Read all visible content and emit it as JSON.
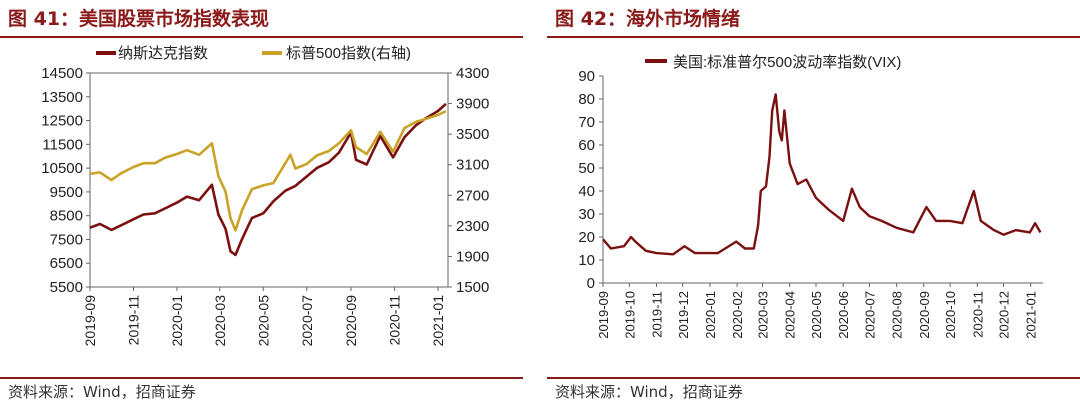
{
  "colors": {
    "accent": "#8b1a1a",
    "nasdaq": "#7a1010",
    "sp500": "#c9a227",
    "vix": "#7a1010"
  },
  "left": {
    "fig_title": "图 41：美国股票市场指数表现",
    "source": "资料来源：Wind，招商证券"
  },
  "right": {
    "fig_title": "图 42：海外市场情绪",
    "source": "资料来源：Wind，招商证券"
  },
  "chart_data": [
    {
      "type": "line",
      "legend": "top",
      "grid": false,
      "y_left": {
        "ticks": [
          5500,
          6500,
          7500,
          8500,
          9500,
          10500,
          11500,
          12500,
          13500,
          14500
        ],
        "range": [
          5500,
          14500
        ]
      },
      "y_right": {
        "ticks": [
          1500,
          1900,
          2300,
          2700,
          3100,
          3500,
          3900,
          4300
        ],
        "range": [
          1500,
          4300
        ]
      },
      "x_ticks": [
        "2019-09",
        "2019-11",
        "2020-01",
        "2020-03",
        "2020-05",
        "2020-07",
        "2020-09",
        "2020-11",
        "2021-01"
      ],
      "x_range": [
        "2019-09-01",
        "2021-01-15"
      ],
      "series": [
        {
          "name": "纳斯达克指数",
          "axis": "left",
          "points": [
            [
              "2019-09-01",
              8000
            ],
            [
              "2019-09-15",
              8150
            ],
            [
              "2019-10-01",
              7900
            ],
            [
              "2019-10-15",
              8100
            ],
            [
              "2019-11-01",
              8350
            ],
            [
              "2019-11-15",
              8550
            ],
            [
              "2019-12-01",
              8600
            ],
            [
              "2019-12-15",
              8800
            ],
            [
              "2020-01-01",
              9050
            ],
            [
              "2020-01-15",
              9300
            ],
            [
              "2020-02-01",
              9150
            ],
            [
              "2020-02-19",
              9800
            ],
            [
              "2020-02-28",
              8550
            ],
            [
              "2020-03-09",
              7950
            ],
            [
              "2020-03-16",
              7000
            ],
            [
              "2020-03-23",
              6850
            ],
            [
              "2020-04-01",
              7500
            ],
            [
              "2020-04-15",
              8400
            ],
            [
              "2020-05-01",
              8600
            ],
            [
              "2020-05-15",
              9100
            ],
            [
              "2020-06-01",
              9550
            ],
            [
              "2020-06-15",
              9750
            ],
            [
              "2020-07-01",
              10150
            ],
            [
              "2020-07-15",
              10500
            ],
            [
              "2020-08-01",
              10750
            ],
            [
              "2020-08-15",
              11150
            ],
            [
              "2020-09-01",
              12000
            ],
            [
              "2020-09-08",
              10850
            ],
            [
              "2020-09-23",
              10650
            ],
            [
              "2020-10-12",
              11850
            ],
            [
              "2020-10-30",
              10950
            ],
            [
              "2020-11-15",
              11800
            ],
            [
              "2020-12-01",
              12300
            ],
            [
              "2020-12-15",
              12600
            ],
            [
              "2021-01-01",
              12900
            ],
            [
              "2021-01-12",
              13200
            ]
          ]
        },
        {
          "name": "标普500指数(右轴)",
          "axis": "right",
          "points": [
            [
              "2019-09-01",
              2980
            ],
            [
              "2019-09-15",
              3000
            ],
            [
              "2019-10-01",
              2900
            ],
            [
              "2019-10-15",
              2990
            ],
            [
              "2019-11-01",
              3070
            ],
            [
              "2019-11-15",
              3120
            ],
            [
              "2019-12-01",
              3120
            ],
            [
              "2019-12-15",
              3190
            ],
            [
              "2020-01-01",
              3240
            ],
            [
              "2020-01-15",
              3290
            ],
            [
              "2020-02-01",
              3230
            ],
            [
              "2020-02-19",
              3380
            ],
            [
              "2020-02-28",
              2950
            ],
            [
              "2020-03-09",
              2750
            ],
            [
              "2020-03-16",
              2400
            ],
            [
              "2020-03-23",
              2240
            ],
            [
              "2020-04-01",
              2500
            ],
            [
              "2020-04-15",
              2780
            ],
            [
              "2020-05-01",
              2830
            ],
            [
              "2020-05-15",
              2860
            ],
            [
              "2020-06-08",
              3230
            ],
            [
              "2020-06-15",
              3050
            ],
            [
              "2020-07-01",
              3110
            ],
            [
              "2020-07-15",
              3220
            ],
            [
              "2020-08-01",
              3280
            ],
            [
              "2020-08-15",
              3380
            ],
            [
              "2020-09-01",
              3550
            ],
            [
              "2020-09-08",
              3330
            ],
            [
              "2020-09-23",
              3240
            ],
            [
              "2020-10-12",
              3530
            ],
            [
              "2020-10-30",
              3270
            ],
            [
              "2020-11-15",
              3580
            ],
            [
              "2020-12-01",
              3660
            ],
            [
              "2020-12-15",
              3700
            ],
            [
              "2021-01-01",
              3750
            ],
            [
              "2021-01-12",
              3800
            ]
          ]
        }
      ]
    },
    {
      "type": "line",
      "legend": "top",
      "grid": false,
      "y": {
        "ticks": [
          0,
          10,
          20,
          30,
          40,
          50,
          60,
          70,
          80,
          90
        ],
        "range": [
          0,
          90
        ]
      },
      "x_ticks": [
        "2019-09",
        "2019-10",
        "2019-11",
        "2019-12",
        "2020-01",
        "2020-02",
        "2020-03",
        "2020-04",
        "2020-05",
        "2020-06",
        "2020-07",
        "2020-08",
        "2020-09",
        "2020-10",
        "2020-11",
        "2020-12",
        "2021-01"
      ],
      "x_range": [
        "2019-09-01",
        "2021-01-15"
      ],
      "series": [
        {
          "name": "美国:标准普尔500波动率指数(VIX)",
          "points": [
            [
              "2019-09-01",
              19
            ],
            [
              "2019-09-10",
              15
            ],
            [
              "2019-09-25",
              16
            ],
            [
              "2019-10-03",
              20
            ],
            [
              "2019-10-08",
              18
            ],
            [
              "2019-10-20",
              14
            ],
            [
              "2019-11-01",
              13
            ],
            [
              "2019-11-20",
              12.5
            ],
            [
              "2019-12-03",
              16
            ],
            [
              "2019-12-15",
              13
            ],
            [
              "2020-01-01",
              13
            ],
            [
              "2020-01-10",
              13
            ],
            [
              "2020-01-31",
              18
            ],
            [
              "2020-02-10",
              15
            ],
            [
              "2020-02-20",
              15
            ],
            [
              "2020-02-25",
              25
            ],
            [
              "2020-02-28",
              40
            ],
            [
              "2020-03-05",
              42
            ],
            [
              "2020-03-09",
              55
            ],
            [
              "2020-03-12",
              75
            ],
            [
              "2020-03-16",
              82
            ],
            [
              "2020-03-20",
              66
            ],
            [
              "2020-03-23",
              62
            ],
            [
              "2020-03-26",
              75
            ],
            [
              "2020-04-01",
              52
            ],
            [
              "2020-04-10",
              43
            ],
            [
              "2020-04-20",
              45
            ],
            [
              "2020-05-01",
              37
            ],
            [
              "2020-05-15",
              32
            ],
            [
              "2020-06-01",
              27
            ],
            [
              "2020-06-11",
              41
            ],
            [
              "2020-06-20",
              33
            ],
            [
              "2020-07-01",
              29
            ],
            [
              "2020-07-15",
              27
            ],
            [
              "2020-08-01",
              24
            ],
            [
              "2020-08-20",
              22
            ],
            [
              "2020-09-04",
              33
            ],
            [
              "2020-09-15",
              27
            ],
            [
              "2020-10-01",
              27
            ],
            [
              "2020-10-15",
              26
            ],
            [
              "2020-10-28",
              40
            ],
            [
              "2020-11-05",
              27
            ],
            [
              "2020-11-20",
              23
            ],
            [
              "2020-12-01",
              21
            ],
            [
              "2020-12-15",
              23
            ],
            [
              "2020-12-31",
              22
            ],
            [
              "2021-01-06",
              26
            ],
            [
              "2021-01-12",
              22
            ]
          ]
        }
      ]
    }
  ]
}
